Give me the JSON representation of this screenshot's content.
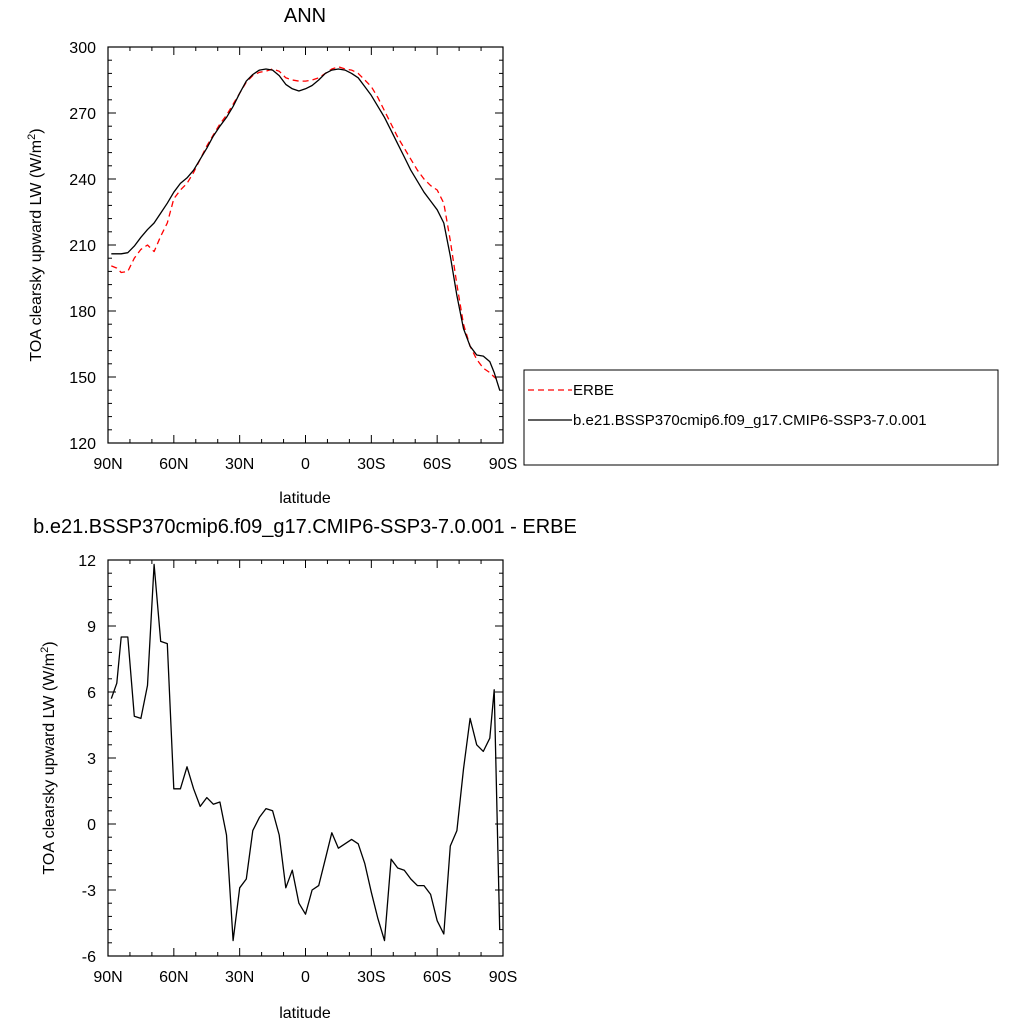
{
  "chart_data": [
    {
      "type": "line",
      "title": "ANN",
      "xlabel": "latitude",
      "ylabel": "TOA clearsky upward LW (W/m",
      "ylabel_sup": "2",
      "ylabel_end": ")",
      "x_tick_labels": [
        "90N",
        "60N",
        "30N",
        "0",
        "30S",
        "60S",
        "90S"
      ],
      "x_tick_values": [
        90,
        60,
        30,
        0,
        -30,
        -60,
        -90
      ],
      "xlim": [
        90,
        -90
      ],
      "ylim": [
        120,
        300
      ],
      "y_ticks": [
        120,
        150,
        180,
        210,
        240,
        270,
        300
      ],
      "grid": false,
      "legend_position": "right",
      "series": [
        {
          "name": "ERBE",
          "color": "#ff0000",
          "dash": "dashed",
          "x": [
            88.5,
            86,
            84,
            81,
            78,
            75,
            72,
            69,
            66,
            63,
            60,
            57,
            54,
            51,
            48,
            45,
            42,
            39,
            36,
            33,
            30,
            27,
            24,
            21,
            18,
            15,
            12,
            9,
            6,
            3,
            0,
            -3,
            -6,
            -9,
            -12,
            -15,
            -18,
            -21,
            -24,
            -27,
            -30,
            -33,
            -36,
            -39,
            -42,
            -45,
            -48,
            -51,
            -54,
            -57,
            -60,
            -63,
            -66,
            -69,
            -72,
            -75,
            -78,
            -81,
            -84,
            -86,
            -88.5
          ],
          "y": [
            200.5,
            199.5,
            197.5,
            198,
            204,
            208,
            210,
            207,
            214,
            220,
            231,
            235,
            238,
            243,
            249,
            255,
            260,
            265,
            269,
            274,
            279,
            284,
            287,
            288.5,
            289,
            290,
            289,
            286,
            285,
            284.5,
            284.5,
            285,
            286,
            288,
            290,
            291,
            290,
            289.5,
            288,
            285,
            282,
            277,
            271,
            265,
            259,
            254,
            249,
            244,
            240,
            237,
            235,
            229,
            212,
            192,
            174,
            164,
            158,
            154,
            152,
            150,
            148
          ]
        },
        {
          "name": "b.e21.BSSP370cmip6.f09_g17.CMIP6-SSP3-7.0.001",
          "color": "#000000",
          "dash": "solid",
          "x": [
            88.5,
            86,
            84,
            81,
            78,
            75,
            72,
            69,
            66,
            63,
            60,
            57,
            54,
            51,
            48,
            45,
            42,
            39,
            36,
            33,
            30,
            27,
            24,
            21,
            18,
            15,
            12,
            9,
            6,
            3,
            0,
            -3,
            -6,
            -9,
            -12,
            -15,
            -18,
            -21,
            -24,
            -27,
            -30,
            -33,
            -36,
            -39,
            -42,
            -45,
            -48,
            -51,
            -54,
            -57,
            -60,
            -63,
            -66,
            -69,
            -72,
            -75,
            -78,
            -81,
            -84,
            -86,
            -88.5
          ],
          "y": [
            206,
            206,
            206,
            206.5,
            209.5,
            213.5,
            217,
            220,
            224.5,
            229,
            234,
            238,
            240.5,
            244,
            249,
            254,
            259.5,
            264,
            268,
            273,
            279,
            284.5,
            287.5,
            289.5,
            290,
            289.5,
            287,
            283,
            281,
            280,
            281,
            282.5,
            285,
            288,
            289.5,
            290,
            289.5,
            288,
            286,
            282,
            278,
            273,
            268,
            262,
            256,
            250,
            244,
            239,
            234,
            230,
            226,
            220,
            205,
            187,
            172,
            164,
            160,
            159.5,
            157,
            152,
            144
          ]
        }
      ]
    },
    {
      "type": "line",
      "title": "b.e21.BSSP370cmip6.f09_g17.CMIP6-SSP3-7.0.001 - ERBE",
      "xlabel": "latitude",
      "ylabel": "TOA clearsky upward LW (W/m",
      "ylabel_sup": "2",
      "ylabel_end": ")",
      "x_tick_labels": [
        "90N",
        "60N",
        "30N",
        "0",
        "30S",
        "60S",
        "90S"
      ],
      "x_tick_values": [
        90,
        60,
        30,
        0,
        -30,
        -60,
        -90
      ],
      "xlim": [
        90,
        -90
      ],
      "ylim": [
        -6,
        12
      ],
      "y_ticks": [
        -6,
        -3,
        0,
        3,
        6,
        9,
        12
      ],
      "grid": false,
      "series": [
        {
          "name": "",
          "color": "#000000",
          "dash": "solid",
          "x": [
            88.5,
            86,
            84,
            81,
            78,
            75,
            72,
            69,
            66,
            63,
            60,
            57,
            54,
            51,
            48,
            45,
            42,
            39,
            36,
            33,
            30,
            27,
            24,
            21,
            18,
            15,
            12,
            9,
            6,
            3,
            0,
            -3,
            -6,
            -9,
            -12,
            -15,
            -18,
            -21,
            -24,
            -27,
            -30,
            -33,
            -36,
            -39,
            -42,
            -45,
            -48,
            -51,
            -54,
            -57,
            -60,
            -63,
            -66,
            -69,
            -72,
            -75,
            -78,
            -81,
            -84,
            -86,
            -88.5
          ],
          "y": [
            5.7,
            6.4,
            8.5,
            8.5,
            4.9,
            4.8,
            6.3,
            11.8,
            8.3,
            8.2,
            1.6,
            1.6,
            2.6,
            1.6,
            0.8,
            1.2,
            0.9,
            1.0,
            -0.5,
            -5.3,
            -2.9,
            -2.5,
            -0.3,
            0.3,
            0.7,
            0.6,
            -0.5,
            -2.9,
            -2.1,
            -3.6,
            -4.1,
            -3.0,
            -2.8,
            -1.6,
            -0.4,
            -1.1,
            -0.9,
            -0.7,
            -0.9,
            -1.8,
            -3.1,
            -4.3,
            -5.3,
            -1.6,
            -2.0,
            -2.1,
            -2.5,
            -2.8,
            -2.8,
            -3.2,
            -4.4,
            -5.0,
            -1.0,
            -0.3,
            2.5,
            4.8,
            3.6,
            3.3,
            3.9,
            6.1,
            -4.8
          ]
        }
      ]
    }
  ]
}
